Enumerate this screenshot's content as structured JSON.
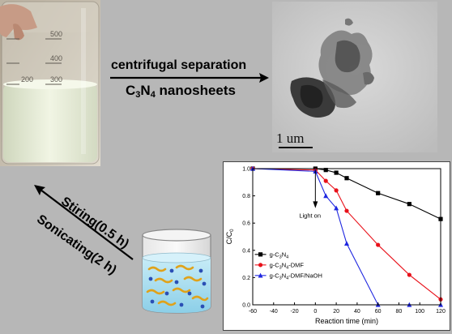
{
  "steps": {
    "separation_label": "centrifugal separation",
    "product_main": "C",
    "product_sub1": "3",
    "product_mid": "N",
    "product_sub2": "4",
    "product_tail": " nanosheets",
    "stirring_label": "Stiring(0.5 h)",
    "sonicating_label": "Sonicating(2 h)"
  },
  "tem": {
    "scale_label": "1 um"
  },
  "beaker_marks": [
    "500",
    "400",
    "300",
    "200"
  ],
  "chart_data": {
    "type": "line",
    "xlabel": "Reaction time (min)",
    "ylabel": "C/C0",
    "xlim": [
      -60,
      120
    ],
    "ylim": [
      0.0,
      1.0
    ],
    "xticks": [
      "-60",
      "-40",
      "-20",
      "0",
      "20",
      "40",
      "60",
      "80",
      "100",
      "120"
    ],
    "yticks": [
      "0.0",
      "0.2",
      "0.4",
      "0.6",
      "0.8",
      "1.0"
    ],
    "annotation": "Light on",
    "legend_position": "bottom-left",
    "series": [
      {
        "name": "g-C3N4",
        "legend_main": "g-C",
        "legend_sub1": "3",
        "legend_mid": "N",
        "legend_sub2": "4",
        "legend_tail": "",
        "color": "#000000",
        "marker": "square",
        "x": [
          -60,
          0,
          10,
          20,
          30,
          60,
          90,
          120
        ],
        "y": [
          1.0,
          1.0,
          0.99,
          0.97,
          0.93,
          0.82,
          0.74,
          0.63
        ]
      },
      {
        "name": "g-C3N4-DMF",
        "legend_main": "g-C",
        "legend_sub1": "3",
        "legend_mid": "N",
        "legend_sub2": "4",
        "legend_tail": "-DMF",
        "color": "#e8111a",
        "marker": "circle",
        "x": [
          -60,
          0,
          10,
          20,
          30,
          60,
          90,
          120
        ],
        "y": [
          1.0,
          0.99,
          0.91,
          0.84,
          0.69,
          0.44,
          0.22,
          0.04
        ]
      },
      {
        "name": "g-C3N4-DMF/NaOH",
        "legend_main": "g-C",
        "legend_sub1": "3",
        "legend_mid": "N",
        "legend_sub2": "4",
        "legend_tail": "-DMF/NaOH",
        "color": "#1f27e0",
        "marker": "triangle",
        "x": [
          -60,
          0,
          10,
          20,
          30,
          60,
          90,
          120
        ],
        "y": [
          1.0,
          0.98,
          0.8,
          0.71,
          0.45,
          0.0,
          0.0,
          0.0
        ]
      }
    ]
  },
  "colors": {
    "background": "#b7b7b7",
    "liquid": "#e8eed9",
    "solution": "#a9dcef"
  }
}
